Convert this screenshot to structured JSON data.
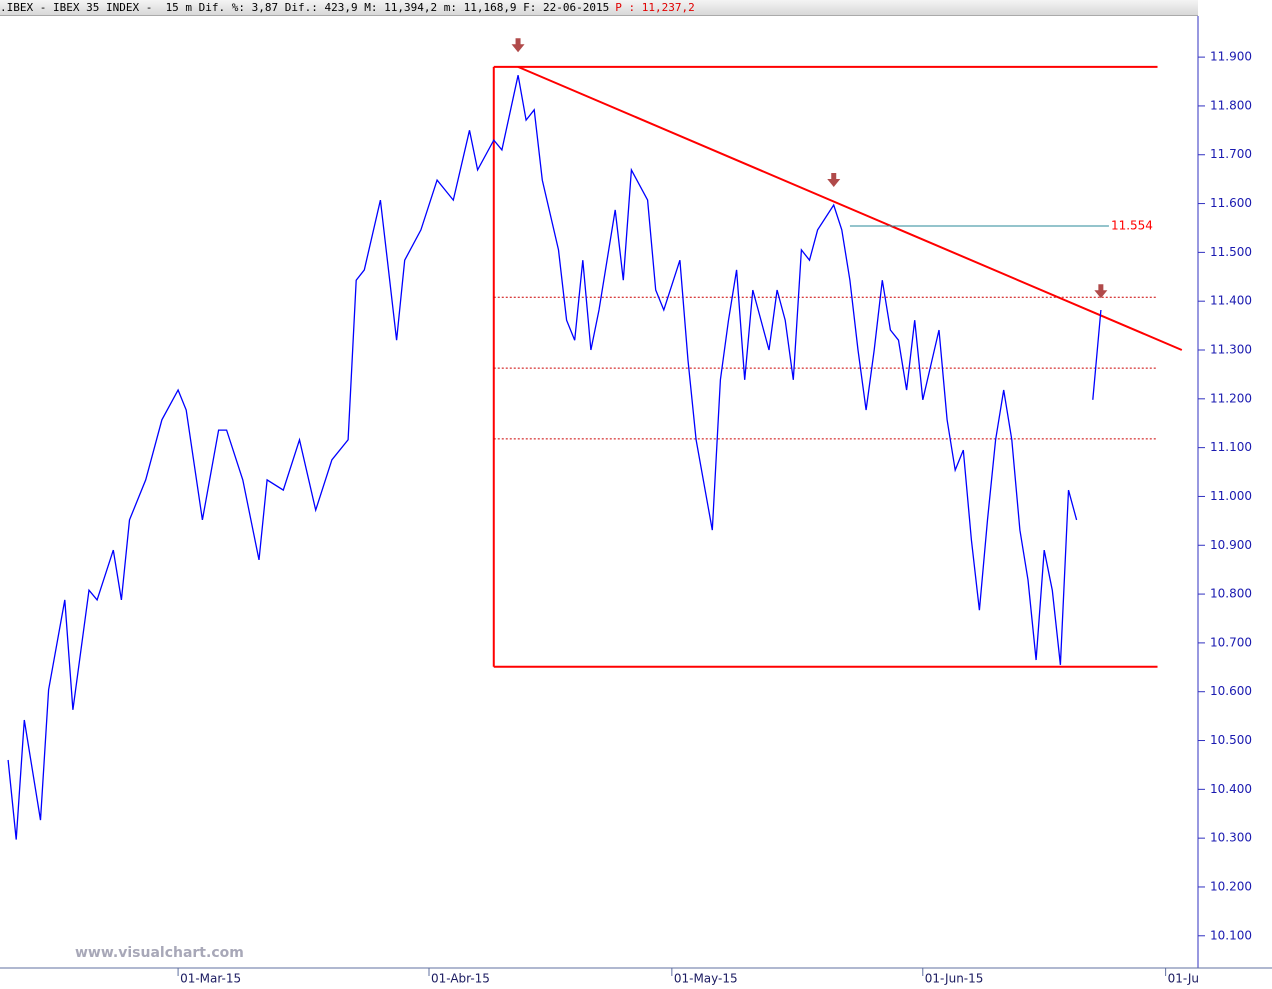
{
  "header": {
    "info": ".IBEX - IBEX 35 INDEX -  15 m Dif. %: 3,87 Dif.: 423,9 M: 11,394,2 m: 11,168,9 F: 22-06-2015",
    "last": "P : 11,237,2"
  },
  "watermark": "www.visualchart.com",
  "chart_data": {
    "type": "line",
    "xlim": [
      "2015-02-07",
      "2015-07-05"
    ],
    "ylim": [
      10034,
      12017
    ],
    "yticks": [
      {
        "value": 10100,
        "label": "10.100"
      },
      {
        "value": 10200,
        "label": "10.200"
      },
      {
        "value": 10300,
        "label": "10.300"
      },
      {
        "value": 10400,
        "label": "10.400"
      },
      {
        "value": 10500,
        "label": "10.500"
      },
      {
        "value": 10600,
        "label": "10.600"
      },
      {
        "value": 10700,
        "label": "10.700"
      },
      {
        "value": 10800,
        "label": "10.800"
      },
      {
        "value": 10900,
        "label": "10.900"
      },
      {
        "value": 11000,
        "label": "11.000"
      },
      {
        "value": 11100,
        "label": "11.100"
      },
      {
        "value": 11200,
        "label": "11.200"
      },
      {
        "value": 11300,
        "label": "11.300"
      },
      {
        "value": 11400,
        "label": "11.400"
      },
      {
        "value": 11500,
        "label": "11.500"
      },
      {
        "value": 11600,
        "label": "11.600"
      },
      {
        "value": 11700,
        "label": "11.700"
      },
      {
        "value": 11800,
        "label": "11.800"
      },
      {
        "value": 11900,
        "label": "11.900"
      }
    ],
    "xticks": [
      {
        "value": "2015-03-01",
        "label": "01-Mar-15"
      },
      {
        "value": "2015-04-01",
        "label": "01-Abr-15"
      },
      {
        "value": "2015-05-01",
        "label": "01-May-15"
      },
      {
        "value": "2015-06-01",
        "label": "01-Jun-15"
      },
      {
        "value": "2015-07-01",
        "label": "01-Ju"
      }
    ],
    "series": [
      {
        "color": "#0000ff",
        "x": [
          "2015-02-08",
          "2015-02-09",
          "2015-02-10",
          "2015-02-12",
          "2015-02-13",
          "2015-02-15",
          "2015-02-16",
          "2015-02-18",
          "2015-02-19",
          "2015-02-21",
          "2015-02-22",
          "2015-02-23",
          "2015-02-25",
          "2015-02-27",
          "2015-03-01",
          "2015-03-02",
          "2015-03-04",
          "2015-03-06",
          "2015-03-07",
          "2015-03-09",
          "2015-03-11",
          "2015-03-12",
          "2015-03-14",
          "2015-03-16",
          "2015-03-18",
          "2015-03-20",
          "2015-03-22",
          "2015-03-23",
          "2015-03-24",
          "2015-03-26",
          "2015-03-27",
          "2015-03-28",
          "2015-03-29",
          "2015-03-31",
          "2015-04-02",
          "2015-04-04",
          "2015-04-06",
          "2015-04-07",
          "2015-04-09",
          "2015-04-10",
          "2015-04-12",
          "2015-04-13",
          "2015-04-14",
          "2015-04-15",
          "2015-04-17",
          "2015-04-18",
          "2015-04-19",
          "2015-04-20",
          "2015-04-21",
          "2015-04-22",
          "2015-04-24",
          "2015-04-25",
          "2015-04-26",
          "2015-04-28",
          "2015-04-29",
          "2015-04-30",
          "2015-05-02",
          "2015-05-03",
          "2015-05-04",
          "2015-05-06",
          "2015-05-07",
          "2015-05-08",
          "2015-05-09",
          "2015-05-10",
          "2015-05-11",
          "2015-05-13",
          "2015-05-14",
          "2015-05-15",
          "2015-05-16",
          "2015-05-17",
          "2015-05-18",
          "2015-05-19",
          "2015-05-21",
          "2015-05-22",
          "2015-05-23",
          "2015-05-24",
          "2015-05-25",
          "2015-05-26",
          "2015-05-27",
          "2015-05-28",
          "2015-05-29",
          "2015-05-30",
          "2015-05-31",
          "2015-06-01",
          "2015-06-03",
          "2015-06-04",
          "2015-06-05",
          "2015-06-06",
          "2015-06-07",
          "2015-06-08",
          "2015-06-09",
          "2015-06-10",
          "2015-06-11",
          "2015-06-12",
          "2015-06-13",
          "2015-06-14",
          "2015-06-15",
          "2015-06-16",
          "2015-06-17",
          "2015-06-18",
          "2015-06-19",
          "2015-06-20",
          "2015-06-21",
          "2015-06-22",
          "2015-06-23"
        ],
        "values": [
          10460,
          10297,
          10542,
          10337,
          10604,
          10788,
          10563,
          10808,
          10788,
          10890,
          10788,
          10952,
          11034,
          11157,
          11218,
          11177,
          10952,
          11136,
          11136,
          11034,
          10870,
          11034,
          11013,
          11116,
          10972,
          11075,
          11116,
          11443,
          11464,
          11607,
          11464,
          11320,
          11484,
          11546,
          11648,
          11607,
          11750,
          11669,
          11730,
          11710,
          11863,
          11771,
          11792,
          11648,
          11505,
          11361,
          11320,
          11484,
          11300,
          11382,
          11587,
          11443,
          11669,
          11607,
          11423,
          11382,
          11484,
          11279,
          11116,
          10931,
          11239,
          11361,
          11464,
          11239,
          11423,
          11300,
          11423,
          11361,
          11239,
          11505,
          11484,
          11546,
          11597,
          11546,
          11443,
          11300,
          11177,
          11300,
          11443,
          11341,
          11320,
          11218,
          11361,
          11198,
          11341,
          11157,
          11054,
          11095,
          10911,
          10767,
          10952,
          11116,
          11218,
          11116,
          10931,
          10829,
          10665,
          10890,
          10808,
          10655,
          11013,
          10952,
          null,
          11198,
          11382
        ]
      }
    ],
    "lines": [
      {
        "x": [
          "2015-04-09",
          "2015-06-30"
        ],
        "y": [
          11880,
          11880
        ],
        "color": "#ff0000",
        "style": "solid"
      },
      {
        "x": [
          "2015-04-09",
          "2015-06-30"
        ],
        "y": [
          10651,
          10651
        ],
        "color": "#ff0000",
        "style": "solid"
      },
      {
        "x": [
          "2015-04-09",
          "2015-04-09"
        ],
        "y": [
          10651,
          11880
        ],
        "color": "#ff0000",
        "style": "solid"
      },
      {
        "x": [
          "2015-04-12",
          "2015-07-03"
        ],
        "y": [
          11880,
          11300
        ],
        "color": "#ff0000",
        "style": "solid"
      },
      {
        "x": [
          "2015-04-09",
          "2015-06-30"
        ],
        "y": [
          11408,
          11408
        ],
        "color": "#cc0000",
        "style": "dotted"
      },
      {
        "x": [
          "2015-04-09",
          "2015-06-30"
        ],
        "y": [
          11263,
          11263
        ],
        "color": "#cc0000",
        "style": "dotted"
      },
      {
        "x": [
          "2015-04-09",
          "2015-06-30"
        ],
        "y": [
          11118,
          11118
        ],
        "color": "#cc0000",
        "style": "dotted"
      }
    ],
    "level": {
      "x": [
        "2015-05-23",
        "2015-06-24"
      ],
      "value": 11554,
      "label": "11.554",
      "color": "#2a8a9a",
      "label_color": "#ff0000"
    },
    "markers": [
      {
        "x": "2015-04-12",
        "y": 11910
      },
      {
        "x": "2015-05-21",
        "y": 11634
      },
      {
        "x": "2015-06-23",
        "y": 11406
      }
    ],
    "marker_color": "#b04a4a"
  }
}
